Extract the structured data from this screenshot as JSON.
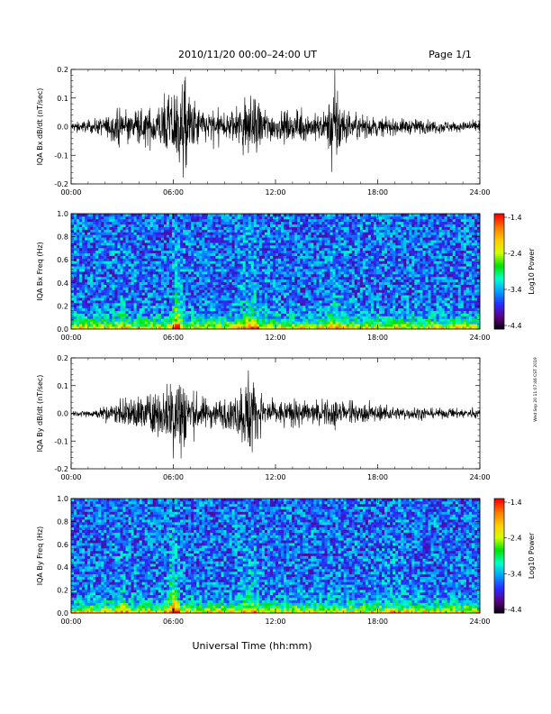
{
  "header": {
    "title": "2010/11/20  00:00–24:00 UT",
    "page": "Page 1/1"
  },
  "xlabel": "Universal Time (hh:mm)",
  "stamp": "Wed Sep 20 11:07:46 CST 2019",
  "chart_data": [
    {
      "type": "line",
      "ylabel": "IQA Bx dB/dt (nT/sec)",
      "xlim": [
        0,
        24
      ],
      "ylim": [
        -0.2,
        0.2
      ],
      "xticks": [
        "00:00",
        "06:00",
        "12:00",
        "18:00",
        "24:00"
      ],
      "yticks": [
        "-0.2",
        "-0.1",
        "0.0",
        "0.1",
        "0.2"
      ],
      "envelope": {
        "x_hours": [
          0,
          0.5,
          1,
          1.5,
          2,
          2.5,
          3,
          3.5,
          4,
          4.5,
          5,
          5.5,
          6,
          6.5,
          7,
          7.5,
          8,
          8.5,
          9,
          9.5,
          10,
          10.5,
          11,
          11.5,
          12,
          12.5,
          13,
          13.5,
          14,
          14.5,
          15,
          15.5,
          16,
          16.5,
          17,
          17.5,
          18,
          18.5,
          19,
          19.5,
          20,
          20.5,
          21,
          21.5,
          22,
          22.5,
          23,
          23.5,
          24
        ],
        "amplitude": [
          0.02,
          0.02,
          0.025,
          0.03,
          0.04,
          0.05,
          0.07,
          0.06,
          0.06,
          0.07,
          0.09,
          0.1,
          0.15,
          0.2,
          0.13,
          0.08,
          0.06,
          0.07,
          0.05,
          0.07,
          0.1,
          0.13,
          0.1,
          0.07,
          0.05,
          0.06,
          0.05,
          0.06,
          0.05,
          0.05,
          0.06,
          0.2,
          0.07,
          0.05,
          0.04,
          0.04,
          0.035,
          0.03,
          0.03,
          0.03,
          0.03,
          0.03,
          0.025,
          0.025,
          0.025,
          0.02,
          0.02,
          0.02,
          0.02
        ]
      }
    },
    {
      "type": "heatmap",
      "ylabel": "IQA Bx Freq (Hz)",
      "colorbar_label": "Log10 Power",
      "colorbar_ticks": [
        "-1.4",
        "-2.4",
        "-3.4",
        "-4.4"
      ],
      "xlim": [
        0,
        24
      ],
      "ylim": [
        0,
        1
      ],
      "zlim": [
        -4.4,
        -1.4
      ],
      "xticks": [
        "00:00",
        "06:00",
        "12:00",
        "18:00",
        "24:00"
      ],
      "yticks": [
        "0.0",
        "0.2",
        "0.4",
        "0.6",
        "0.8",
        "1.0"
      ],
      "colormap": [
        "#000000",
        "#5b0082",
        "#2a2aff",
        "#00a0ff",
        "#00ffcc",
        "#00e000",
        "#d4ff00",
        "#ffcc00",
        "#ff7700",
        "#ff0000"
      ]
    },
    {
      "type": "line",
      "ylabel": "IQA By dB/dt (nT/sec)",
      "xlim": [
        0,
        24
      ],
      "ylim": [
        -0.2,
        0.2
      ],
      "xticks": [
        "00:00",
        "06:00",
        "12:00",
        "18:00",
        "24:00"
      ],
      "yticks": [
        "-0.2",
        "-0.1",
        "0.0",
        "0.1",
        "0.2"
      ],
      "envelope": {
        "x_hours": [
          0,
          0.5,
          1,
          1.5,
          2,
          2.5,
          3,
          3.5,
          4,
          4.5,
          5,
          5.5,
          6,
          6.5,
          7,
          7.5,
          8,
          8.5,
          9,
          9.5,
          10,
          10.5,
          11,
          11.5,
          12,
          12.5,
          13,
          13.5,
          14,
          14.5,
          15,
          15.5,
          16,
          16.5,
          17,
          17.5,
          18,
          18.5,
          19,
          19.5,
          20,
          20.5,
          21,
          21.5,
          22,
          22.5,
          23,
          23.5,
          24
        ],
        "amplitude": [
          0.01,
          0.01,
          0.015,
          0.02,
          0.03,
          0.04,
          0.05,
          0.06,
          0.08,
          0.07,
          0.09,
          0.1,
          0.17,
          0.2,
          0.1,
          0.07,
          0.06,
          0.06,
          0.06,
          0.06,
          0.12,
          0.2,
          0.08,
          0.06,
          0.05,
          0.05,
          0.05,
          0.05,
          0.05,
          0.04,
          0.05,
          0.06,
          0.04,
          0.04,
          0.035,
          0.04,
          0.03,
          0.03,
          0.025,
          0.025,
          0.025,
          0.025,
          0.02,
          0.02,
          0.02,
          0.02,
          0.02,
          0.02,
          0.02
        ]
      }
    },
    {
      "type": "heatmap",
      "ylabel": "IQA By Freq (Hz)",
      "colorbar_label": "Log10 Power",
      "colorbar_ticks": [
        "-1.4",
        "-2.4",
        "-3.4",
        "-4.4"
      ],
      "xlim": [
        0,
        24
      ],
      "ylim": [
        0,
        1
      ],
      "zlim": [
        -4.4,
        -1.4
      ],
      "xticks": [
        "00:00",
        "06:00",
        "12:00",
        "18:00",
        "24:00"
      ],
      "yticks": [
        "0.0",
        "0.2",
        "0.4",
        "0.6",
        "0.8",
        "1.0"
      ],
      "colormap": [
        "#000000",
        "#5b0082",
        "#2a2aff",
        "#00a0ff",
        "#00ffcc",
        "#00e000",
        "#d4ff00",
        "#ffcc00",
        "#ff7700",
        "#ff0000"
      ]
    }
  ]
}
